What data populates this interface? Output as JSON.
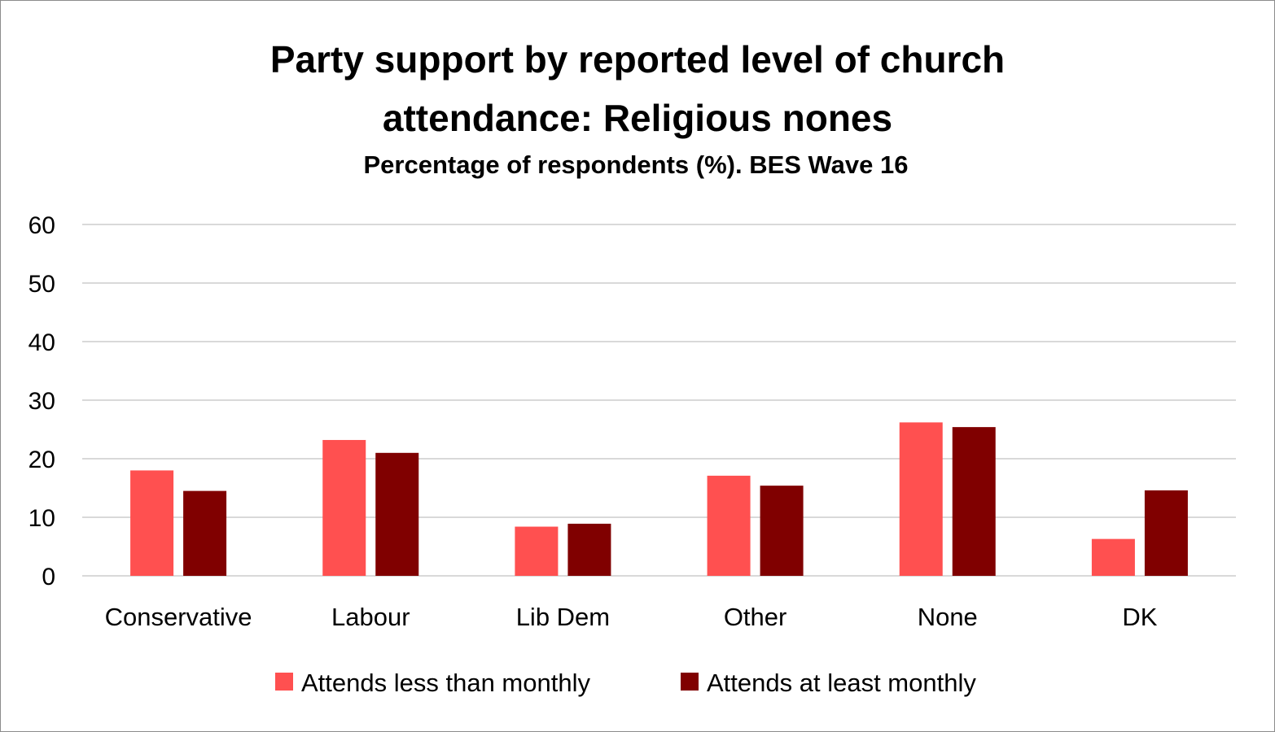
{
  "chart_data": {
    "type": "bar",
    "title": "Party support by reported level of church attendance: Religious nones",
    "title_lines": [
      "Party support by reported level of church",
      "attendance: Religious nones"
    ],
    "subtitle": "Percentage of respondents (%). BES  Wave 16",
    "xlabel": "",
    "ylabel": "",
    "categories": [
      "Conservative",
      "Labour",
      "Lib Dem",
      "Other",
      "None",
      "DK"
    ],
    "series": [
      {
        "name": "Attends less than monthly",
        "color": "#ff5050",
        "values": [
          18.0,
          23.2,
          8.4,
          17.1,
          26.2,
          6.3
        ]
      },
      {
        "name": "Attends at least monthly",
        "color": "#800000",
        "values": [
          14.5,
          21.0,
          8.9,
          15.4,
          25.4,
          14.6
        ]
      }
    ],
    "ylim": [
      0,
      60
    ],
    "yticks": [
      0,
      10,
      20,
      30,
      40,
      50,
      60
    ],
    "grid": true,
    "gridline_color": "#d9d9d9",
    "legend_position": "bottom"
  }
}
